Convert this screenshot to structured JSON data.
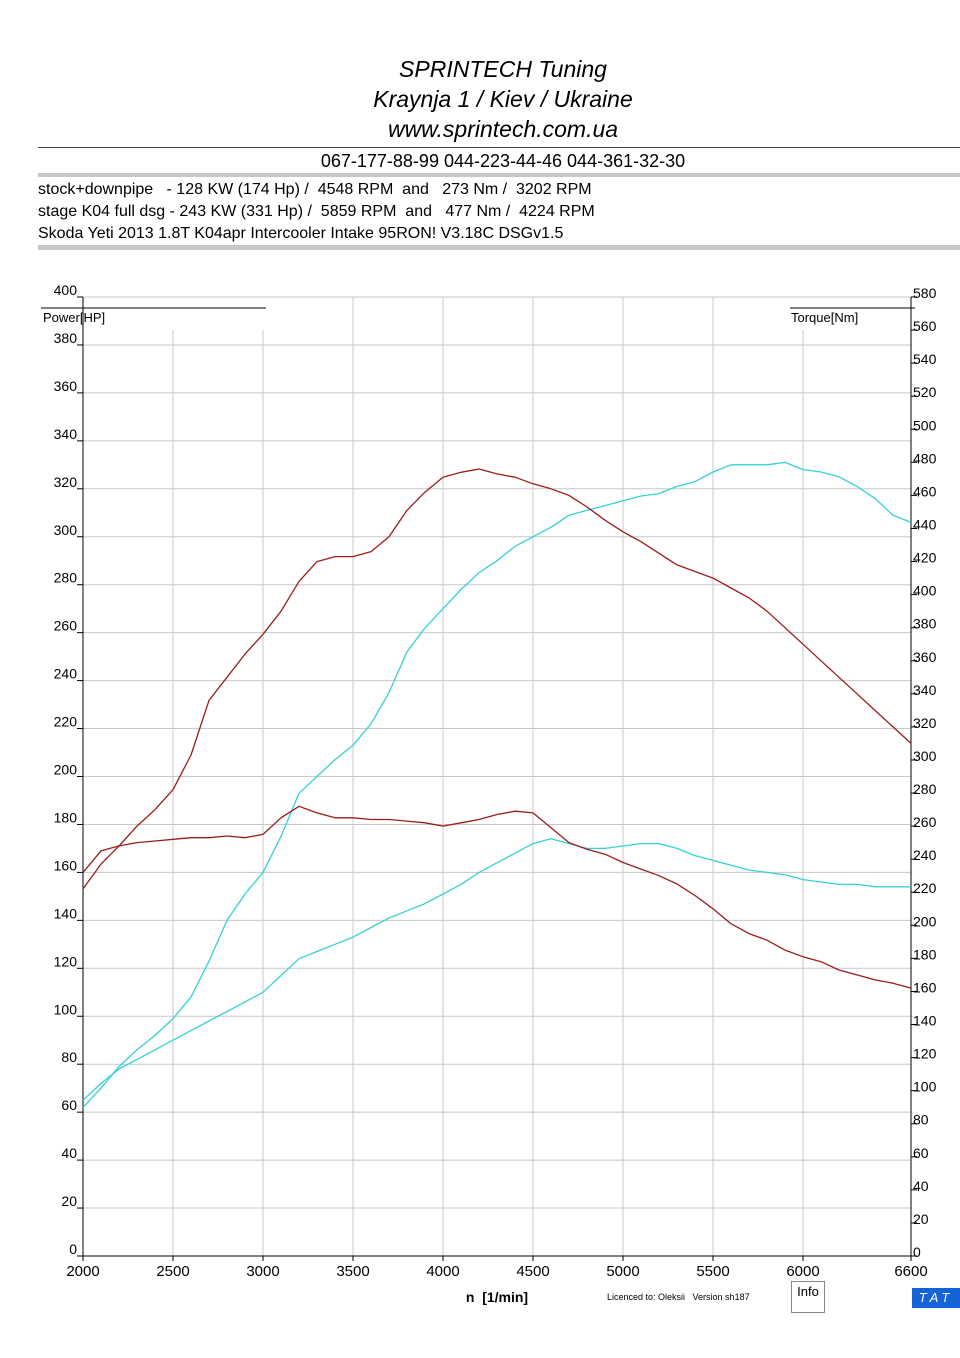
{
  "header": {
    "title": "SPRINTECH Tuning",
    "address": "Kraynja 1 / Kiev / Ukraine",
    "website": "www.sprintech.com.ua",
    "phones": "067-177-88-99 044-223-44-46 044-361-32-30"
  },
  "info_lines": [
    "stock+downpipe   - 128 KW (174 Hp) /  4548 RPM  and   273 Nm /  3202 RPM",
    "stage K04 full dsg - 243 KW (331 Hp) /  5859 RPM  and   477 Nm /  4224 RPM",
    "Skoda Yeti 2013 1.8T K04apr Intercooler Intake 95RON! V3.18C DSGv1.5"
  ],
  "footer": {
    "licence": "Licenced to: Oleksii   Version sh187",
    "info_button": "Info",
    "tat_badge": "TAT"
  },
  "colors": {
    "power": "#36d0d8",
    "torque": "#9b1c1c",
    "grid": "#c8c8c8",
    "badge": "#1463d8"
  },
  "chart_data": {
    "type": "line",
    "xlabel": "n  [1/min]",
    "ylabel_left": "Power[HP]",
    "ylabel_right": "Torque[Nm]",
    "xlim": [
      2000,
      6600
    ],
    "ylim_left": [
      0,
      400
    ],
    "ylim_right": [
      0,
      580
    ],
    "x_ticks": [
      2000,
      2500,
      3000,
      3500,
      4000,
      4500,
      5000,
      5500,
      6000,
      6600
    ],
    "y_ticks_left": [
      0,
      20,
      40,
      60,
      80,
      100,
      120,
      140,
      160,
      180,
      200,
      220,
      240,
      260,
      280,
      300,
      320,
      340,
      360,
      380,
      400
    ],
    "y_ticks_right": [
      0,
      20,
      40,
      60,
      80,
      100,
      120,
      140,
      160,
      180,
      200,
      220,
      240,
      260,
      280,
      300,
      320,
      340,
      360,
      380,
      400,
      420,
      440,
      460,
      480,
      500,
      520,
      540,
      560,
      580
    ],
    "grid": true,
    "series": [
      {
        "color": "#36d0d8",
        "axis": "left",
        "x": [
          2000,
          2100,
          2200,
          2300,
          2400,
          2500,
          2600,
          2700,
          2800,
          2900,
          3000,
          3100,
          3200,
          3300,
          3400,
          3500,
          3600,
          3700,
          3800,
          3900,
          4000,
          4100,
          4200,
          4300,
          4400,
          4500,
          4600,
          4700,
          4800,
          4900,
          5000,
          5100,
          5200,
          5300,
          5400,
          5500,
          5600,
          5700,
          5800,
          5900,
          6000,
          6100,
          6200,
          6300,
          6400,
          6500,
          6600
        ],
        "y": [
          62,
          70,
          79,
          86,
          92,
          99,
          108,
          123,
          140,
          151,
          160,
          175,
          193,
          200,
          207,
          213,
          222,
          235,
          252,
          262,
          270,
          278,
          285,
          290,
          296,
          300,
          304,
          309,
          311,
          313,
          315,
          317,
          318,
          321,
          323,
          327,
          330,
          330,
          330,
          331,
          328,
          327,
          325,
          321,
          316,
          309,
          306
        ]
      },
      {
        "color": "#36d0d8",
        "axis": "left",
        "x": [
          2000,
          2100,
          2200,
          2300,
          2400,
          2500,
          2600,
          2700,
          2800,
          2900,
          3000,
          3100,
          3200,
          3300,
          3400,
          3500,
          3600,
          3700,
          3800,
          3900,
          4000,
          4100,
          4200,
          4300,
          4400,
          4500,
          4600,
          4700,
          4800,
          4900,
          5000,
          5100,
          5200,
          5300,
          5400,
          5500,
          5600,
          5700,
          5800,
          5900,
          6000,
          6100,
          6200,
          6300,
          6400,
          6500,
          6600
        ],
        "y": [
          65,
          72,
          78,
          82,
          86,
          90,
          94,
          98,
          102,
          106,
          110,
          117,
          124,
          127,
          130,
          133,
          137,
          141,
          144,
          147,
          151,
          155,
          160,
          164,
          168,
          172,
          174,
          172,
          170,
          170,
          171,
          172,
          172,
          170,
          167,
          165,
          163,
          161,
          160,
          159,
          157,
          156,
          155,
          155,
          154,
          154,
          154
        ]
      },
      {
        "color": "#9b1c1c",
        "axis": "right",
        "x": [
          2000,
          2100,
          2200,
          2300,
          2400,
          2500,
          2600,
          2700,
          2800,
          2900,
          3000,
          3100,
          3200,
          3300,
          3400,
          3500,
          3600,
          3700,
          3800,
          3900,
          4000,
          4100,
          4200,
          4300,
          4400,
          4500,
          4600,
          4700,
          4800,
          4900,
          5000,
          5100,
          5200,
          5300,
          5400,
          5500,
          5600,
          5700,
          5800,
          5900,
          6000,
          6100,
          6200,
          6300,
          6400,
          6500,
          6600
        ],
        "y": [
          222,
          237,
          248,
          260,
          270,
          282,
          303,
          336,
          350,
          364,
          376,
          390,
          408,
          420,
          423,
          423,
          426,
          435,
          451,
          462,
          471,
          474,
          476,
          473,
          471,
          467,
          464,
          460,
          453,
          445,
          438,
          432,
          425,
          418,
          414,
          410,
          404,
          398,
          390,
          380,
          370,
          360,
          350,
          340,
          330,
          320,
          310
        ]
      },
      {
        "color": "#9b1c1c",
        "axis": "right",
        "x": [
          2000,
          2100,
          2200,
          2300,
          2400,
          2500,
          2600,
          2700,
          2800,
          2900,
          3000,
          3100,
          3200,
          3300,
          3400,
          3500,
          3600,
          3700,
          3800,
          3900,
          4000,
          4100,
          4200,
          4300,
          4400,
          4500,
          4600,
          4700,
          4800,
          4900,
          5000,
          5100,
          5200,
          5300,
          5400,
          5500,
          5600,
          5700,
          5800,
          5900,
          6000,
          6100,
          6200,
          6300,
          6400,
          6500,
          6600
        ],
        "y": [
          232,
          245,
          248,
          250,
          251,
          252,
          253,
          253,
          254,
          253,
          255,
          265,
          272,
          268,
          265,
          265,
          264,
          264,
          263,
          262,
          260,
          262,
          264,
          267,
          269,
          268,
          259,
          250,
          246,
          243,
          238,
          234,
          230,
          225,
          218,
          210,
          201,
          195,
          191,
          185,
          181,
          178,
          173,
          170,
          167,
          165,
          162
        ]
      }
    ]
  }
}
